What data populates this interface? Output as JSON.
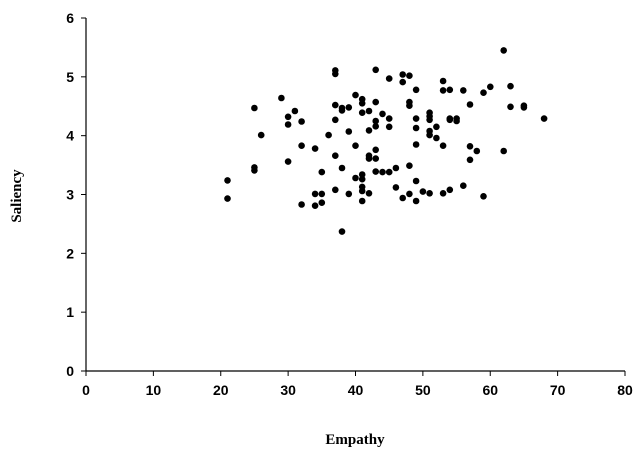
{
  "chart_data": {
    "type": "scatter",
    "title": "",
    "xlabel": "Empathy",
    "ylabel": "Saliency",
    "xlim": [
      0,
      80
    ],
    "ylim": [
      0,
      6
    ],
    "xticks": [
      "0",
      "10",
      "20",
      "30",
      "40",
      "50",
      "60",
      "70",
      "80"
    ],
    "yticks": [
      "0",
      "1",
      "2",
      "3",
      "4",
      "5",
      "6"
    ],
    "grid": false,
    "legend": "none",
    "marker_color": "#000000",
    "points": [
      {
        "x": 21,
        "y": 3.24
      },
      {
        "x": 21,
        "y": 2.93
      },
      {
        "x": 25,
        "y": 4.47
      },
      {
        "x": 25,
        "y": 3.46
      },
      {
        "x": 25,
        "y": 3.41
      },
      {
        "x": 26,
        "y": 4.01
      },
      {
        "x": 29,
        "y": 4.64
      },
      {
        "x": 30,
        "y": 4.32
      },
      {
        "x": 30,
        "y": 4.19
      },
      {
        "x": 30,
        "y": 3.56
      },
      {
        "x": 31,
        "y": 4.42
      },
      {
        "x": 32,
        "y": 4.24
      },
      {
        "x": 32,
        "y": 3.83
      },
      {
        "x": 32,
        "y": 2.83
      },
      {
        "x": 34,
        "y": 3.78
      },
      {
        "x": 34,
        "y": 3.01
      },
      {
        "x": 34,
        "y": 2.81
      },
      {
        "x": 35,
        "y": 3.38
      },
      {
        "x": 35,
        "y": 3.01
      },
      {
        "x": 35,
        "y": 2.86
      },
      {
        "x": 36,
        "y": 4.01
      },
      {
        "x": 37,
        "y": 5.11
      },
      {
        "x": 37,
        "y": 5.05
      },
      {
        "x": 37,
        "y": 4.52
      },
      {
        "x": 37,
        "y": 4.27
      },
      {
        "x": 37,
        "y": 3.66
      },
      {
        "x": 37,
        "y": 3.08
      },
      {
        "x": 38,
        "y": 4.47
      },
      {
        "x": 38,
        "y": 4.43
      },
      {
        "x": 38,
        "y": 3.45
      },
      {
        "x": 38,
        "y": 2.37
      },
      {
        "x": 39,
        "y": 4.48
      },
      {
        "x": 39,
        "y": 4.07
      },
      {
        "x": 39,
        "y": 3.01
      },
      {
        "x": 40,
        "y": 4.69
      },
      {
        "x": 40,
        "y": 3.83
      },
      {
        "x": 40,
        "y": 3.28
      },
      {
        "x": 41,
        "y": 4.62
      },
      {
        "x": 41,
        "y": 4.55
      },
      {
        "x": 41,
        "y": 4.39
      },
      {
        "x": 41,
        "y": 3.34
      },
      {
        "x": 41,
        "y": 3.26
      },
      {
        "x": 41,
        "y": 3.13
      },
      {
        "x": 41,
        "y": 3.06
      },
      {
        "x": 41,
        "y": 2.89
      },
      {
        "x": 42,
        "y": 4.42
      },
      {
        "x": 42,
        "y": 4.09
      },
      {
        "x": 42,
        "y": 3.66
      },
      {
        "x": 42,
        "y": 3.61
      },
      {
        "x": 42,
        "y": 3.02
      },
      {
        "x": 43,
        "y": 5.12
      },
      {
        "x": 43,
        "y": 4.57
      },
      {
        "x": 43,
        "y": 4.25
      },
      {
        "x": 43,
        "y": 4.16
      },
      {
        "x": 43,
        "y": 3.76
      },
      {
        "x": 43,
        "y": 3.61
      },
      {
        "x": 43,
        "y": 3.39
      },
      {
        "x": 44,
        "y": 4.37
      },
      {
        "x": 44,
        "y": 3.38
      },
      {
        "x": 45,
        "y": 4.97
      },
      {
        "x": 45,
        "y": 4.29
      },
      {
        "x": 45,
        "y": 4.15
      },
      {
        "x": 45,
        "y": 3.38
      },
      {
        "x": 46,
        "y": 3.45
      },
      {
        "x": 46,
        "y": 3.12
      },
      {
        "x": 47,
        "y": 5.04
      },
      {
        "x": 47,
        "y": 4.91
      },
      {
        "x": 47,
        "y": 2.94
      },
      {
        "x": 48,
        "y": 5.02
      },
      {
        "x": 48,
        "y": 4.57
      },
      {
        "x": 48,
        "y": 4.51
      },
      {
        "x": 48,
        "y": 3.49
      },
      {
        "x": 48,
        "y": 3.01
      },
      {
        "x": 49,
        "y": 4.78
      },
      {
        "x": 49,
        "y": 4.29
      },
      {
        "x": 49,
        "y": 4.13
      },
      {
        "x": 49,
        "y": 3.85
      },
      {
        "x": 49,
        "y": 3.23
      },
      {
        "x": 49,
        "y": 2.89
      },
      {
        "x": 50,
        "y": 3.05
      },
      {
        "x": 51,
        "y": 4.39
      },
      {
        "x": 51,
        "y": 4.33
      },
      {
        "x": 51,
        "y": 4.27
      },
      {
        "x": 51,
        "y": 4.08
      },
      {
        "x": 51,
        "y": 4.01
      },
      {
        "x": 51,
        "y": 3.02
      },
      {
        "x": 52,
        "y": 4.15
      },
      {
        "x": 52,
        "y": 3.96
      },
      {
        "x": 53,
        "y": 4.93
      },
      {
        "x": 53,
        "y": 4.77
      },
      {
        "x": 53,
        "y": 3.83
      },
      {
        "x": 53,
        "y": 3.02
      },
      {
        "x": 54,
        "y": 4.78
      },
      {
        "x": 54,
        "y": 4.29
      },
      {
        "x": 54,
        "y": 4.27
      },
      {
        "x": 54,
        "y": 3.08
      },
      {
        "x": 55,
        "y": 4.29
      },
      {
        "x": 55,
        "y": 4.25
      },
      {
        "x": 56,
        "y": 4.77
      },
      {
        "x": 56,
        "y": 3.15
      },
      {
        "x": 57,
        "y": 4.53
      },
      {
        "x": 57,
        "y": 3.82
      },
      {
        "x": 57,
        "y": 3.59
      },
      {
        "x": 58,
        "y": 3.74
      },
      {
        "x": 59,
        "y": 4.73
      },
      {
        "x": 59,
        "y": 2.97
      },
      {
        "x": 60,
        "y": 4.83
      },
      {
        "x": 62,
        "y": 5.45
      },
      {
        "x": 62,
        "y": 3.74
      },
      {
        "x": 63,
        "y": 4.84
      },
      {
        "x": 63,
        "y": 4.49
      },
      {
        "x": 65,
        "y": 4.51
      },
      {
        "x": 65,
        "y": 4.48
      },
      {
        "x": 68,
        "y": 4.29
      }
    ]
  }
}
